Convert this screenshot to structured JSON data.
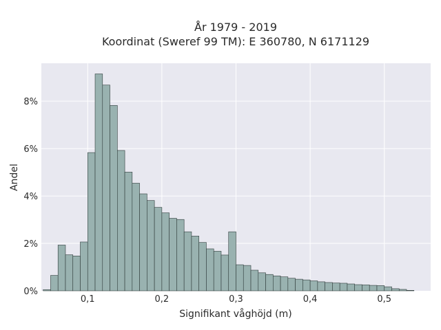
{
  "chart_data": {
    "type": "bar",
    "title": "År 1979 - 2019",
    "subtitle": "Koordinat (Sweref 99 TM): E 360780, N 6171129",
    "xlabel": "Signifikant våghöjd (m)",
    "ylabel": "Andel",
    "x_ticks": [
      {
        "value": 0.1,
        "label": "0,1"
      },
      {
        "value": 0.2,
        "label": "0,2"
      },
      {
        "value": 0.3,
        "label": "0,3"
      },
      {
        "value": 0.4,
        "label": "0,4"
      },
      {
        "value": 0.5,
        "label": "0,5"
      }
    ],
    "y_ticks": [
      {
        "value": 0,
        "label": "0%"
      },
      {
        "value": 2,
        "label": "2%"
      },
      {
        "value": 4,
        "label": "4%"
      },
      {
        "value": 6,
        "label": "6%"
      },
      {
        "value": 8,
        "label": "8%"
      }
    ],
    "xlim": [
      0.0375,
      0.5625
    ],
    "ylim": [
      0,
      9.6
    ],
    "grid": true,
    "bin_width": 0.01,
    "bin_start": 0.04,
    "values": [
      0.05,
      0.65,
      1.93,
      1.52,
      1.47,
      2.06,
      5.83,
      9.15,
      8.68,
      7.82,
      5.92,
      5.01,
      4.54,
      4.09,
      3.81,
      3.52,
      3.29,
      3.06,
      3.01,
      2.49,
      2.31,
      2.04,
      1.77,
      1.67,
      1.51,
      2.49,
      1.1,
      1.07,
      0.87,
      0.76,
      0.69,
      0.63,
      0.59,
      0.53,
      0.49,
      0.46,
      0.42,
      0.38,
      0.35,
      0.33,
      0.32,
      0.29,
      0.26,
      0.25,
      0.23,
      0.22,
      0.17,
      0.09,
      0.06,
      0.02
    ],
    "colors": {
      "plot_bg": "#e8e8f0",
      "grid": "#ffffff",
      "bar_fill": "#99b2b0",
      "bar_stroke": "#2f3b3a"
    }
  }
}
